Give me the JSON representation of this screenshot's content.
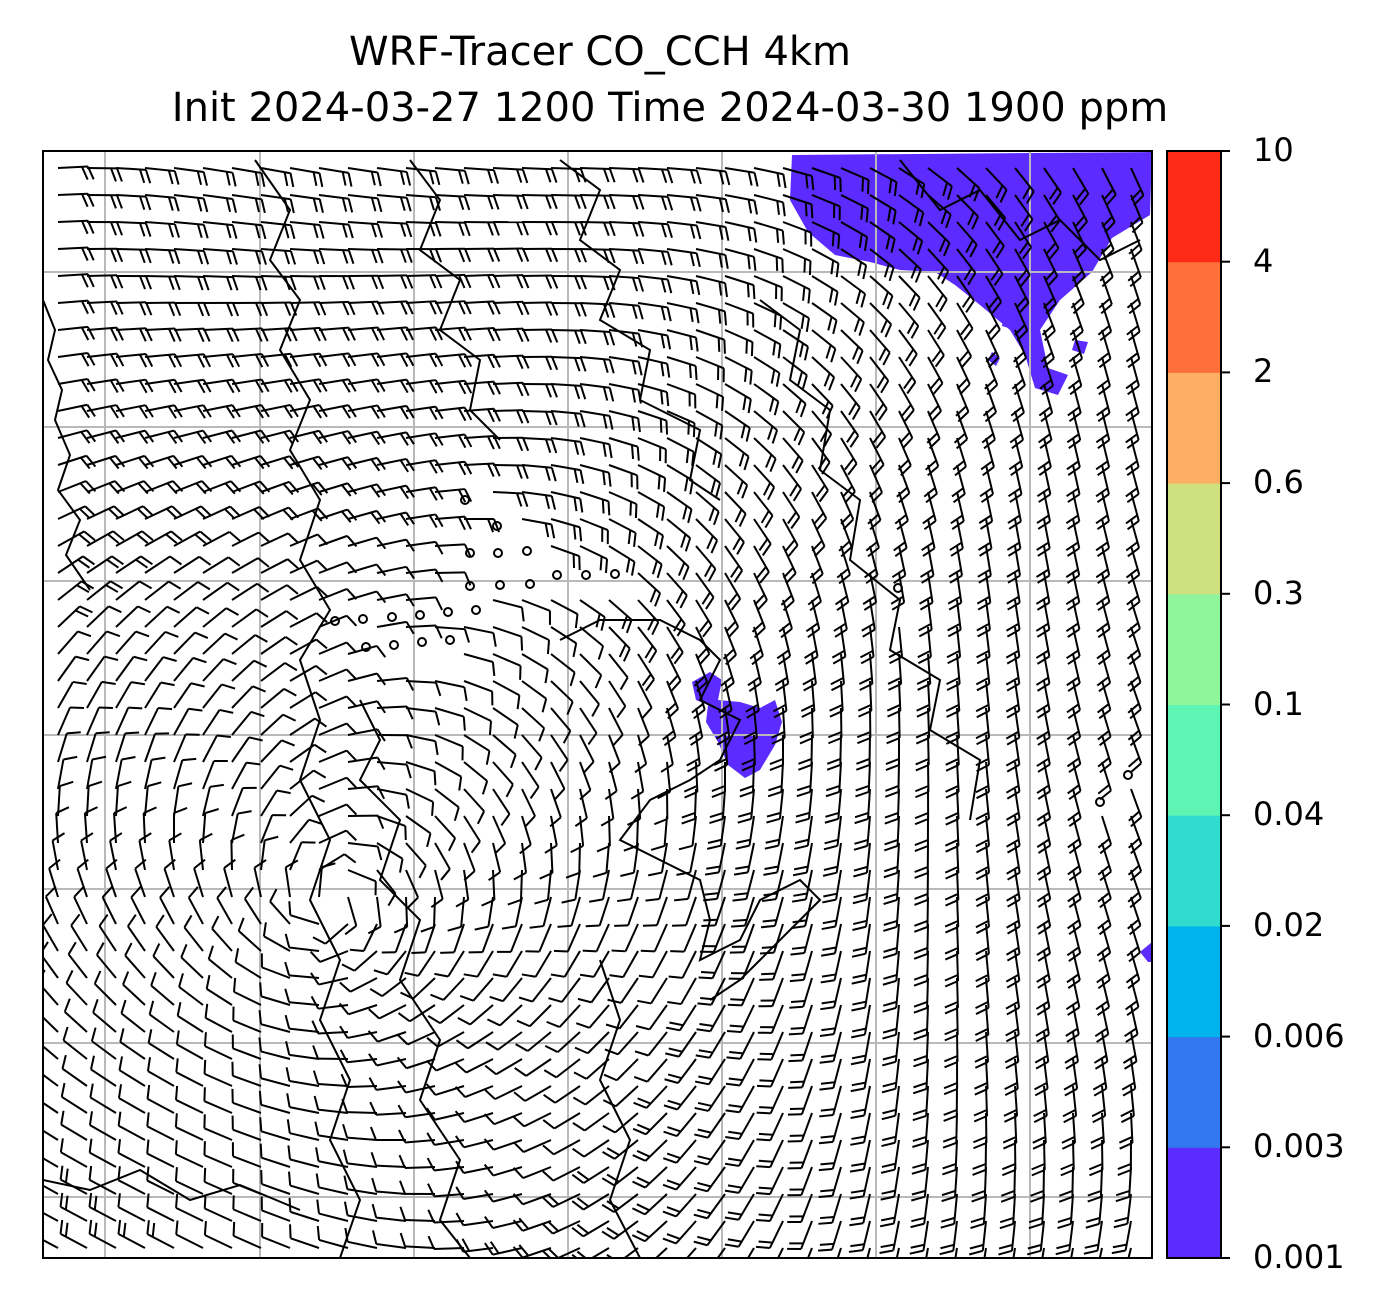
{
  "title": {
    "line1": "WRF-Tracer CO_CCH 4km",
    "line2": "Init 2024-03-27 1200 Time 2024-03-30 1900 ppm"
  },
  "colorbar": {
    "levels": [
      "0.001",
      "0.003",
      "0.006",
      "0.02",
      "0.04",
      "0.1",
      "0.3",
      "0.6",
      "2",
      "4",
      "10"
    ],
    "colors": [
      "#5b2bff",
      "#3478f0",
      "#00b3ea",
      "#2fdccf",
      "#5ef5b4",
      "#8ff59a",
      "#cfe07e",
      "#fdb063",
      "#ff6f3a",
      "#ff2a17"
    ]
  },
  "map": {
    "grid_color": "#b9b9b9",
    "coast_color": "#000000",
    "barb_color": "#000000",
    "tracer_color": "#5b2bff"
  }
}
